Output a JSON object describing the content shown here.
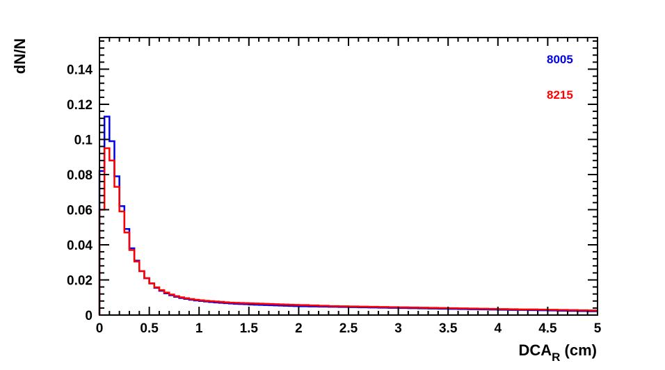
{
  "chart_data": {
    "type": "line",
    "title": "",
    "xlabel": "DCA",
    "xlabel_subscript": "R",
    "xlabel_unit": " (cm)",
    "ylabel": "dN/N",
    "xlim": [
      0,
      5
    ],
    "ylim": [
      0,
      0.158
    ],
    "x_ticks": [
      0,
      0.5,
      1,
      1.5,
      2,
      2.5,
      3,
      3.5,
      4,
      4.5,
      5
    ],
    "x_tick_labels": [
      "0",
      "0.5",
      "1",
      "1.5",
      "2",
      "2.5",
      "3",
      "3.5",
      "4",
      "4.5",
      "5"
    ],
    "y_ticks": [
      0,
      0.02,
      0.04,
      0.06,
      0.08,
      0.1,
      0.12,
      0.14
    ],
    "y_tick_labels": [
      "0",
      "0.02",
      "0.04",
      "0.06",
      "0.08",
      "0.1",
      "0.12",
      "0.14"
    ],
    "grid": false,
    "legend_position": "top-right",
    "bin_width": 0.05,
    "bin_edges": [
      0,
      0.05,
      0.1,
      0.15,
      0.2,
      0.25,
      0.3,
      0.35,
      0.4,
      0.45,
      0.5,
      0.55,
      0.6,
      0.65,
      0.7,
      0.75,
      0.8,
      0.85,
      0.9,
      0.95,
      1.0,
      1.05,
      1.1,
      1.15,
      1.2,
      1.25,
      1.3,
      1.35,
      1.4,
      1.45,
      1.5,
      1.55,
      1.6,
      1.65,
      1.7,
      1.75,
      1.8,
      1.85,
      1.9,
      1.95,
      2.0,
      2.1,
      2.2,
      2.3,
      2.4,
      2.5,
      2.6,
      2.7,
      2.8,
      2.9,
      3.0,
      3.1,
      3.2,
      3.3,
      3.4,
      3.5,
      3.6,
      3.7,
      3.8,
      3.9,
      4.0,
      4.1,
      4.2,
      4.3,
      4.4,
      4.5,
      4.6,
      4.7,
      4.8,
      4.9,
      5.0
    ],
    "series": [
      {
        "name": "8005",
        "color": "#0000e6",
        "values": [
          0.082,
          0.113,
          0.099,
          0.079,
          0.062,
          0.049,
          0.038,
          0.031,
          0.025,
          0.021,
          0.018,
          0.0155,
          0.0138,
          0.0124,
          0.0113,
          0.0104,
          0.0097,
          0.0092,
          0.0087,
          0.0083,
          0.008,
          0.0077,
          0.0074,
          0.0072,
          0.007,
          0.0068,
          0.0066,
          0.0064,
          0.0063,
          0.0062,
          0.006,
          0.0059,
          0.0058,
          0.0057,
          0.0056,
          0.0055,
          0.0054,
          0.0053,
          0.0052,
          0.0051,
          0.005,
          0.0049,
          0.0048,
          0.0047,
          0.0046,
          0.0045,
          0.0044,
          0.0043,
          0.0042,
          0.0041,
          0.004,
          0.0039,
          0.0038,
          0.0037,
          0.0036,
          0.0035,
          0.0034,
          0.0033,
          0.0032,
          0.0031,
          0.003,
          0.0029,
          0.0029,
          0.0028,
          0.0027,
          0.0026,
          0.0025,
          0.0024,
          0.0023,
          0.0022
        ]
      },
      {
        "name": "8215",
        "color": "#ff0000",
        "values": [
          0.06,
          0.095,
          0.088,
          0.073,
          0.059,
          0.047,
          0.037,
          0.0305,
          0.025,
          0.021,
          0.018,
          0.0158,
          0.0142,
          0.0128,
          0.0117,
          0.0108,
          0.0101,
          0.0096,
          0.0091,
          0.0087,
          0.0084,
          0.0081,
          0.0079,
          0.0077,
          0.0075,
          0.0073,
          0.0071,
          0.007,
          0.0069,
          0.0068,
          0.0067,
          0.0066,
          0.0065,
          0.0064,
          0.0063,
          0.0062,
          0.0061,
          0.006,
          0.0059,
          0.0058,
          0.0057,
          0.0055,
          0.0053,
          0.0051,
          0.005,
          0.0049,
          0.0048,
          0.0047,
          0.0046,
          0.0045,
          0.0044,
          0.0043,
          0.0042,
          0.0041,
          0.004,
          0.0039,
          0.0038,
          0.0037,
          0.0036,
          0.0035,
          0.0034,
          0.0033,
          0.0032,
          0.0032,
          0.0031,
          0.003,
          0.0029,
          0.0028,
          0.0027,
          0.0026
        ]
      }
    ]
  }
}
